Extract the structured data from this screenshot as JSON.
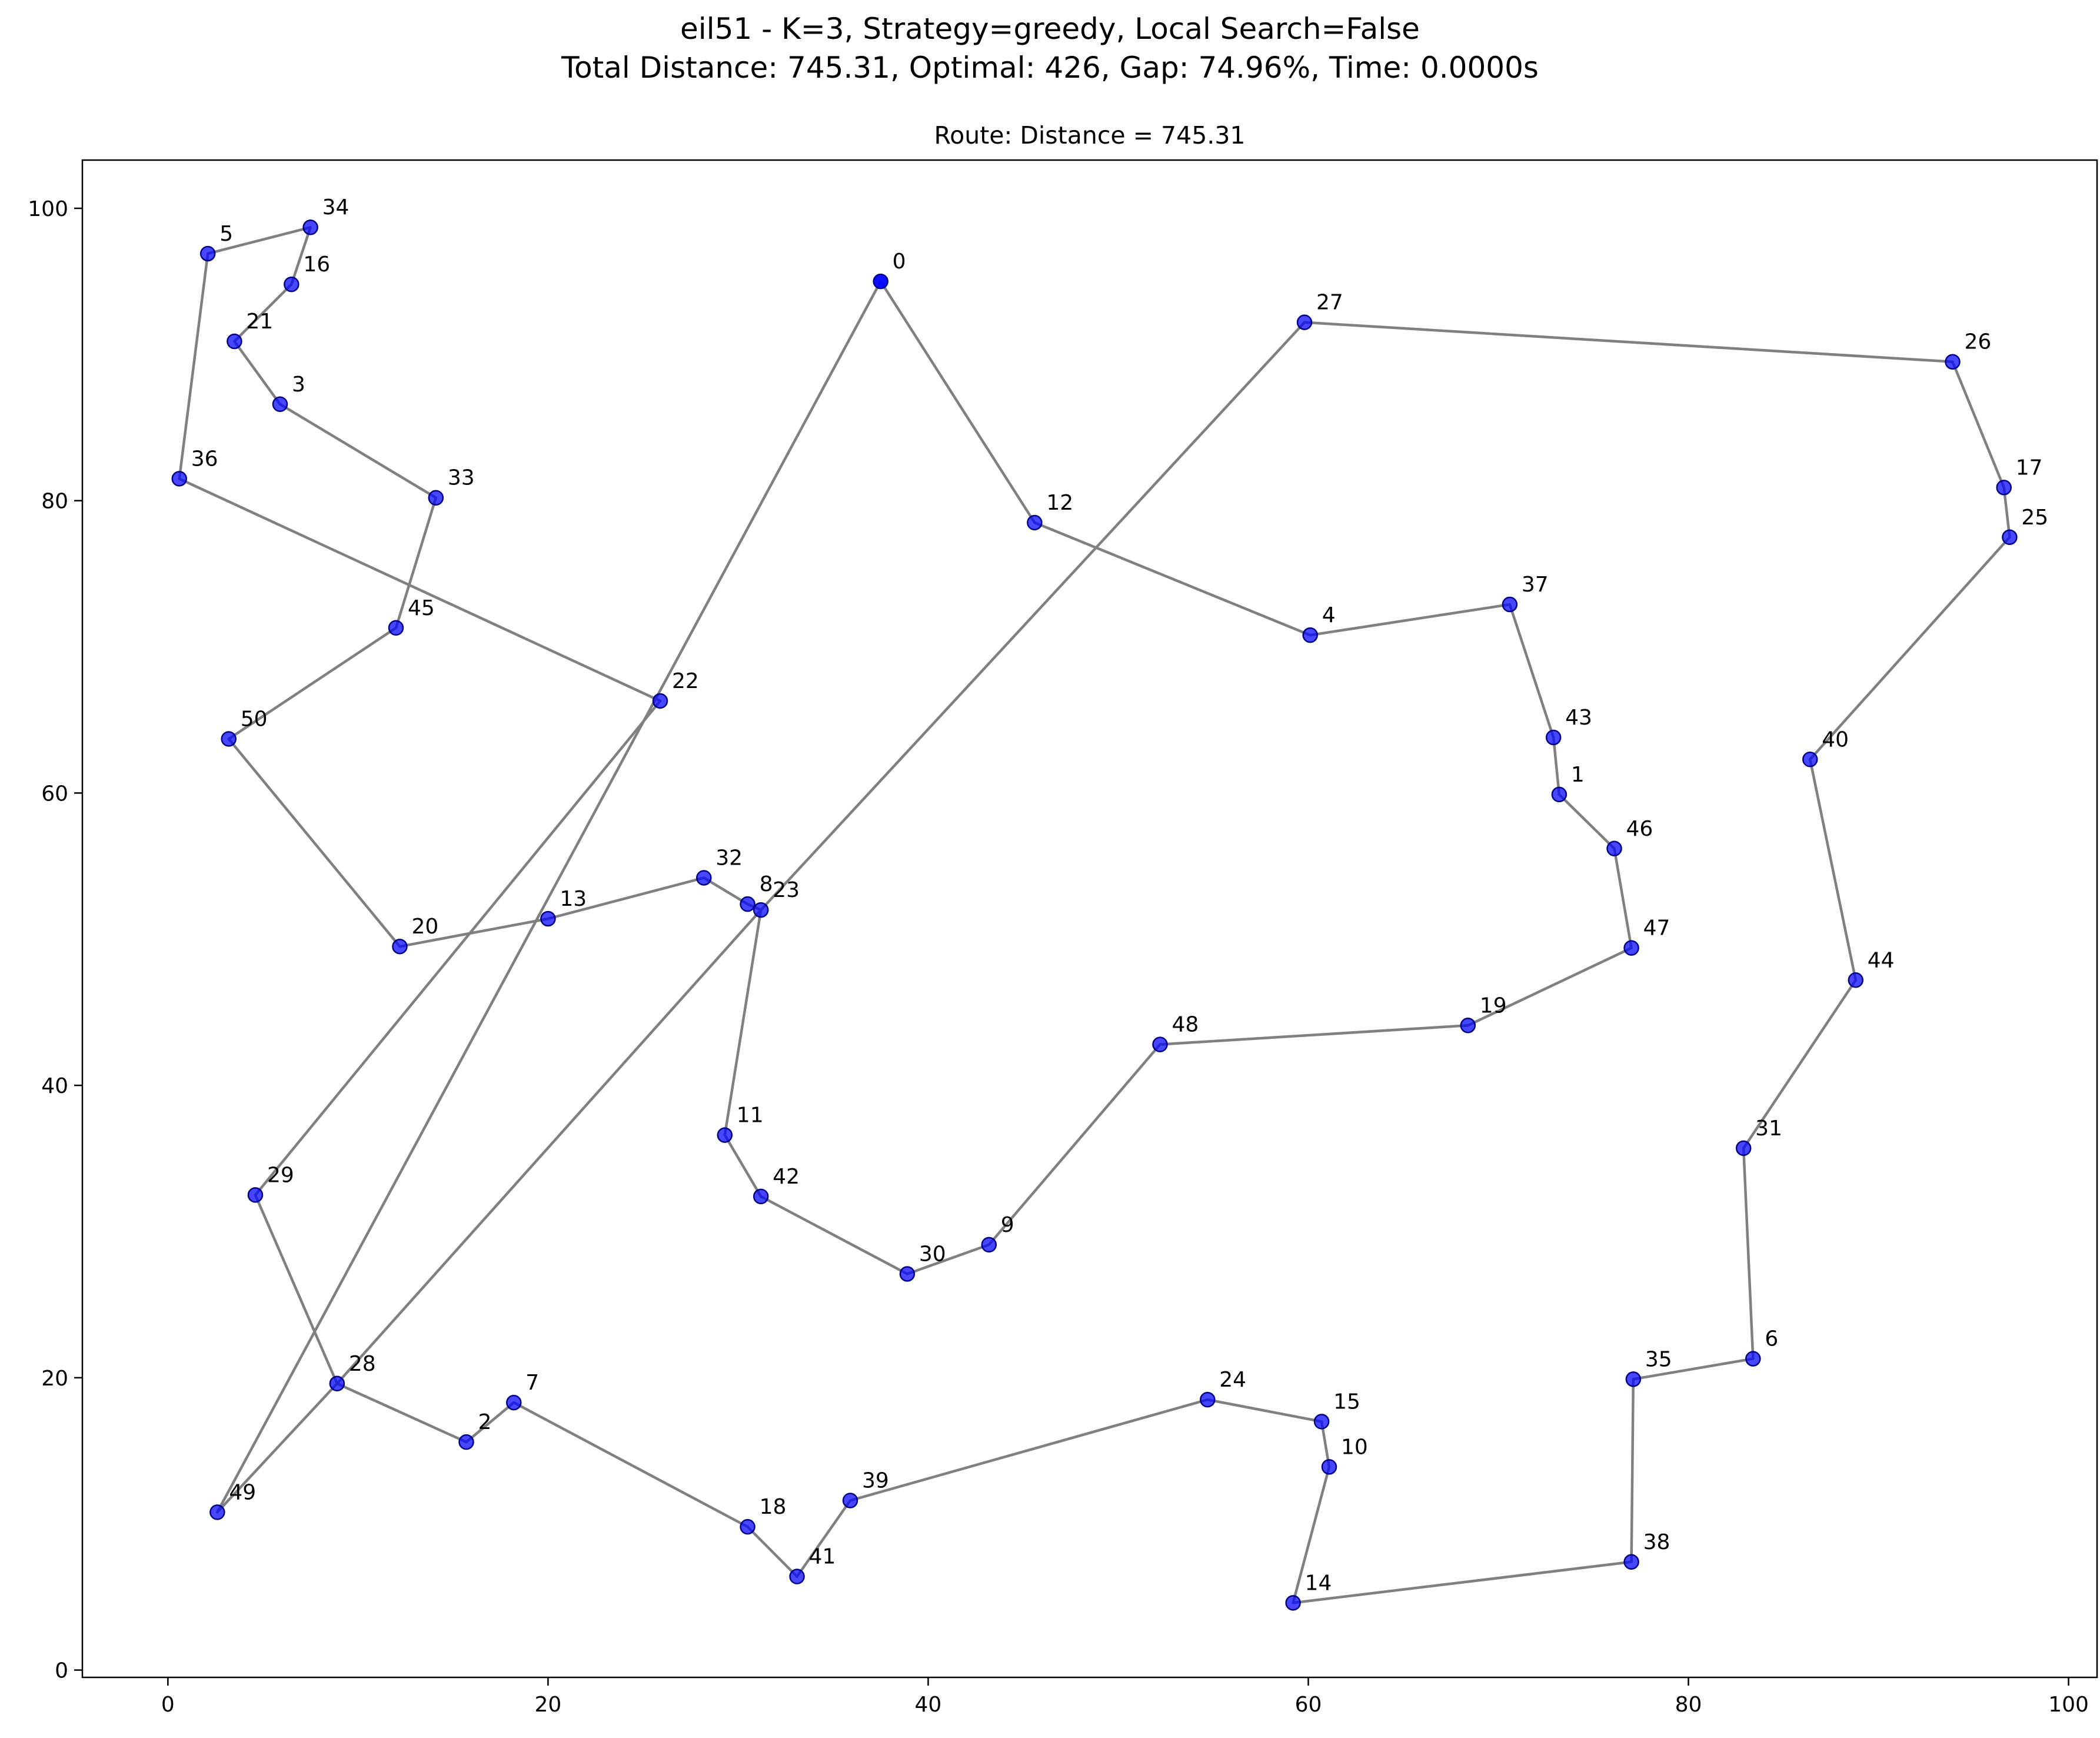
{
  "figure": {
    "suptitle_line1": "eil51 - K=3, Strategy=greedy, Local Search=False",
    "suptitle_line2": "Total Distance: 745.31, Optimal: 426, Gap: 74.96%, Time: 0.0000s"
  },
  "chart_data": {
    "type": "scatter",
    "title": "Route: Distance = 745.31",
    "xlabel": "",
    "ylabel": "",
    "xlim": [
      -4.5,
      101.5
    ],
    "ylim": [
      -0.5,
      103.3
    ],
    "xticks": [
      0,
      20,
      40,
      60,
      80,
      100
    ],
    "yticks": [
      0,
      20,
      40,
      60,
      80,
      100
    ],
    "grid": false,
    "colors": {
      "point": "#0000ff",
      "point_edge": "#00008b",
      "route": "#808080",
      "depot": "#0000ff"
    },
    "depot": 0,
    "nodes": [
      {
        "id": 0,
        "label": "0",
        "x": 37.5,
        "y": 95.0
      },
      {
        "id": 1,
        "label": "1",
        "x": 73.2,
        "y": 59.9
      },
      {
        "id": 2,
        "label": "2",
        "x": 15.7,
        "y": 15.6
      },
      {
        "id": 3,
        "label": "3",
        "x": 5.9,
        "y": 86.6
      },
      {
        "id": 4,
        "label": "4",
        "x": 60.1,
        "y": 70.8
      },
      {
        "id": 5,
        "label": "5",
        "x": 2.1,
        "y": 96.9
      },
      {
        "id": 6,
        "label": "6",
        "x": 83.4,
        "y": 21.3
      },
      {
        "id": 7,
        "label": "7",
        "x": 18.2,
        "y": 18.3
      },
      {
        "id": 8,
        "label": "8",
        "x": 30.5,
        "y": 52.4
      },
      {
        "id": 9,
        "label": "9",
        "x": 43.2,
        "y": 29.1
      },
      {
        "id": 10,
        "label": "10",
        "x": 61.1,
        "y": 13.9
      },
      {
        "id": 11,
        "label": "11",
        "x": 29.3,
        "y": 36.6
      },
      {
        "id": 12,
        "label": "12",
        "x": 45.6,
        "y": 78.5
      },
      {
        "id": 13,
        "label": "13",
        "x": 20.0,
        "y": 51.4
      },
      {
        "id": 14,
        "label": "14",
        "x": 59.2,
        "y": 4.6
      },
      {
        "id": 15,
        "label": "15",
        "x": 60.7,
        "y": 17.0
      },
      {
        "id": 16,
        "label": "16",
        "x": 6.5,
        "y": 94.8
      },
      {
        "id": 17,
        "label": "17",
        "x": 96.6,
        "y": 80.9
      },
      {
        "id": 18,
        "label": "18",
        "x": 30.5,
        "y": 9.8
      },
      {
        "id": 19,
        "label": "19",
        "x": 68.4,
        "y": 44.1
      },
      {
        "id": 20,
        "label": "20",
        "x": 12.2,
        "y": 49.5
      },
      {
        "id": 21,
        "label": "21",
        "x": 3.5,
        "y": 90.9
      },
      {
        "id": 22,
        "label": "22",
        "x": 25.9,
        "y": 66.3
      },
      {
        "id": 23,
        "label": "23",
        "x": 31.2,
        "y": 52.0
      },
      {
        "id": 24,
        "label": "24",
        "x": 54.7,
        "y": 18.5
      },
      {
        "id": 25,
        "label": "25",
        "x": 96.9,
        "y": 77.5
      },
      {
        "id": 26,
        "label": "26",
        "x": 93.9,
        "y": 89.5
      },
      {
        "id": 27,
        "label": "27",
        "x": 59.8,
        "y": 92.2
      },
      {
        "id": 28,
        "label": "28",
        "x": 8.9,
        "y": 19.6
      },
      {
        "id": 29,
        "label": "29",
        "x": 4.6,
        "y": 32.5
      },
      {
        "id": 30,
        "label": "30",
        "x": 38.9,
        "y": 27.1
      },
      {
        "id": 31,
        "label": "31",
        "x": 82.9,
        "y": 35.7
      },
      {
        "id": 32,
        "label": "32",
        "x": 28.2,
        "y": 54.2
      },
      {
        "id": 33,
        "label": "33",
        "x": 14.1,
        "y": 80.2
      },
      {
        "id": 34,
        "label": "34",
        "x": 7.5,
        "y": 98.7
      },
      {
        "id": 35,
        "label": "35",
        "x": 77.1,
        "y": 19.9
      },
      {
        "id": 36,
        "label": "36",
        "x": 0.6,
        "y": 81.5
      },
      {
        "id": 37,
        "label": "37",
        "x": 70.6,
        "y": 72.9
      },
      {
        "id": 38,
        "label": "38",
        "x": 77.0,
        "y": 7.4
      },
      {
        "id": 39,
        "label": "39",
        "x": 35.9,
        "y": 11.6
      },
      {
        "id": 40,
        "label": "40",
        "x": 86.4,
        "y": 62.3
      },
      {
        "id": 41,
        "label": "41",
        "x": 33.1,
        "y": 6.4
      },
      {
        "id": 42,
        "label": "42",
        "x": 31.2,
        "y": 32.4
      },
      {
        "id": 43,
        "label": "43",
        "x": 72.9,
        "y": 63.8
      },
      {
        "id": 44,
        "label": "44",
        "x": 88.8,
        "y": 47.2
      },
      {
        "id": 45,
        "label": "45",
        "x": 12.0,
        "y": 71.3
      },
      {
        "id": 46,
        "label": "46",
        "x": 76.1,
        "y": 56.2
      },
      {
        "id": 47,
        "label": "47",
        "x": 77.0,
        "y": 49.4
      },
      {
        "id": 48,
        "label": "48",
        "x": 52.2,
        "y": 42.8
      },
      {
        "id": 49,
        "label": "49",
        "x": 2.6,
        "y": 10.8
      },
      {
        "id": 50,
        "label": "50",
        "x": 3.2,
        "y": 63.7
      }
    ],
    "edges": [
      [
        0,
        12
      ],
      [
        12,
        4
      ],
      [
        4,
        37
      ],
      [
        37,
        43
      ],
      [
        43,
        1
      ],
      [
        1,
        46
      ],
      [
        46,
        47
      ],
      [
        47,
        19
      ],
      [
        19,
        48
      ],
      [
        48,
        9
      ],
      [
        9,
        30
      ],
      [
        30,
        42
      ],
      [
        42,
        11
      ],
      [
        11,
        23
      ],
      [
        23,
        8
      ],
      [
        8,
        32
      ],
      [
        32,
        13
      ],
      [
        13,
        20
      ],
      [
        20,
        50
      ],
      [
        50,
        45
      ],
      [
        45,
        33
      ],
      [
        33,
        3
      ],
      [
        3,
        21
      ],
      [
        21,
        16
      ],
      [
        16,
        34
      ],
      [
        34,
        5
      ],
      [
        5,
        36
      ],
      [
        36,
        22
      ],
      [
        22,
        29
      ],
      [
        29,
        28
      ],
      [
        28,
        2
      ],
      [
        2,
        7
      ],
      [
        7,
        18
      ],
      [
        18,
        41
      ],
      [
        41,
        39
      ],
      [
        39,
        24
      ],
      [
        24,
        15
      ],
      [
        15,
        10
      ],
      [
        10,
        14
      ],
      [
        14,
        38
      ],
      [
        38,
        35
      ],
      [
        35,
        6
      ],
      [
        6,
        31
      ],
      [
        31,
        44
      ],
      [
        44,
        40
      ],
      [
        40,
        25
      ],
      [
        25,
        17
      ],
      [
        17,
        26
      ],
      [
        26,
        27
      ],
      [
        27,
        23
      ],
      [
        23,
        28
      ],
      [
        49,
        28
      ],
      [
        49,
        0
      ]
    ]
  }
}
